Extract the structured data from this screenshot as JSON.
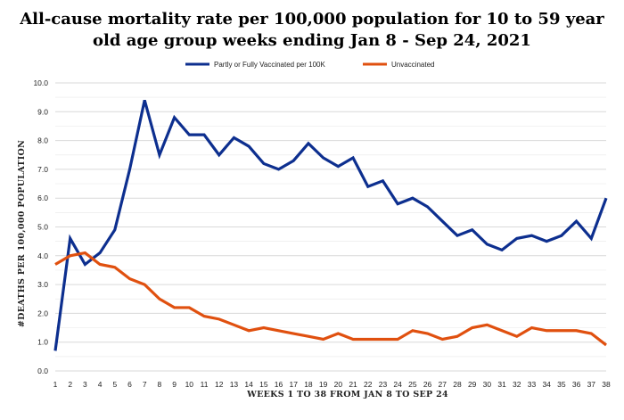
{
  "chart_data": {
    "type": "line",
    "title_line1": "All-cause mortality rate per 100,000  population for 10 to 59 year",
    "title_line2": "old age group weeks ending Jan 8 - Sep 24, 2021",
    "xlabel": "WEEKS  1 TO 38 FROM JAN 8 TO SEP 24",
    "ylabel": "#DEATHS PER 100,000 POPULATION",
    "x": [
      1,
      2,
      3,
      4,
      5,
      6,
      7,
      8,
      9,
      10,
      11,
      12,
      13,
      14,
      15,
      16,
      17,
      18,
      19,
      20,
      21,
      22,
      23,
      24,
      25,
      26,
      27,
      28,
      29,
      30,
      31,
      32,
      33,
      34,
      35,
      36,
      37,
      38
    ],
    "x_tick_labels": [
      "1",
      "2",
      "3",
      "4",
      "5",
      "6",
      "7",
      "8",
      "9",
      "10",
      "11",
      "12",
      "13",
      "14",
      "15",
      "16",
      "17",
      "18",
      "19",
      "20",
      "21",
      "22",
      "23",
      "24",
      "25",
      "26",
      "27",
      "28",
      "29",
      "30",
      "31",
      "32",
      "33",
      "34",
      "35",
      "36",
      "37",
      "38"
    ],
    "ylim": [
      0,
      10
    ],
    "y_ticks": [
      "0.0",
      "1.0",
      "2.0",
      "3.0",
      "4.0",
      "5.0",
      "6.0",
      "7.0",
      "8.0",
      "9.0",
      "10.0"
    ],
    "grid": true,
    "legend_position": "top",
    "series": [
      {
        "name": "Partly or Fully Vaccinated per 100K",
        "color": "#0d2f8f",
        "values": [
          0.7,
          4.6,
          3.7,
          4.1,
          4.9,
          7.0,
          9.4,
          7.5,
          8.8,
          8.2,
          8.2,
          7.5,
          8.1,
          7.8,
          7.2,
          7.0,
          7.3,
          7.9,
          7.4,
          7.1,
          7.4,
          6.4,
          6.6,
          5.8,
          6.0,
          5.7,
          5.2,
          4.7,
          4.9,
          4.4,
          4.2,
          4.6,
          4.7,
          4.5,
          4.7,
          5.2,
          4.6,
          6.0
        ]
      },
      {
        "name": "Unvaccinated",
        "color": "#e0500f",
        "values": [
          3.7,
          4.0,
          4.1,
          3.7,
          3.6,
          3.2,
          3.0,
          2.5,
          2.2,
          2.2,
          1.9,
          1.8,
          1.6,
          1.4,
          1.5,
          1.4,
          1.3,
          1.2,
          1.1,
          1.3,
          1.1,
          1.1,
          1.1,
          1.1,
          1.4,
          1.3,
          1.1,
          1.2,
          1.5,
          1.6,
          1.4,
          1.2,
          1.5,
          1.4,
          1.4,
          1.4,
          1.3,
          0.9
        ]
      }
    ]
  }
}
